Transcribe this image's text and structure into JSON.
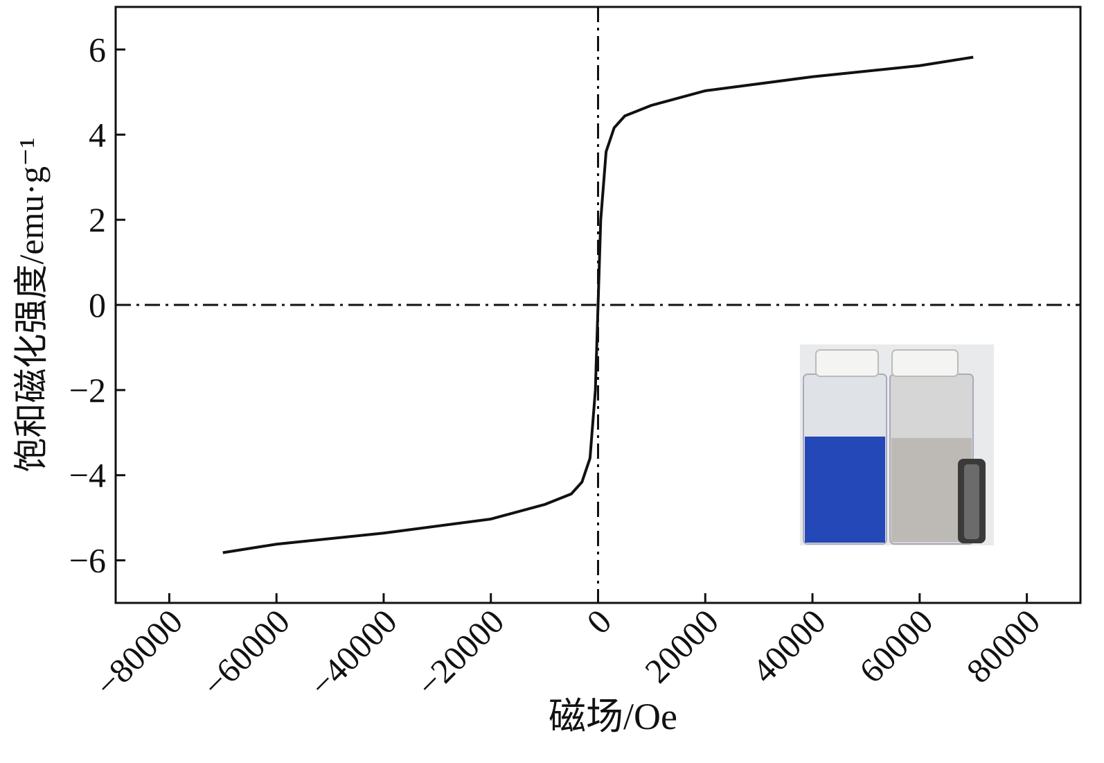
{
  "chart_data": {
    "type": "line",
    "xlabel": "磁场/Oe",
    "ylabel": "饱和磁化强度/emu·g⁻¹",
    "x": [
      -70000,
      -60000,
      -40000,
      -20000,
      -10000,
      -5000,
      -3000,
      -1500,
      -500,
      0,
      500,
      1500,
      3000,
      5000,
      10000,
      20000,
      40000,
      60000,
      70000
    ],
    "values": [
      -5.82,
      -5.62,
      -5.36,
      -5.03,
      -4.69,
      -4.44,
      -4.16,
      -3.6,
      -2.0,
      0,
      2.0,
      3.6,
      4.16,
      4.44,
      4.69,
      5.03,
      5.36,
      5.62,
      5.82
    ],
    "color": "#111111",
    "xlim": [
      -90000,
      90000
    ],
    "ylim": [
      -7,
      7
    ],
    "xticks": [
      {
        "value": -80000,
        "label": "−80000"
      },
      {
        "value": -60000,
        "label": "−60000"
      },
      {
        "value": -40000,
        "label": "−40000"
      },
      {
        "value": -20000,
        "label": "−20000"
      },
      0,
      20000,
      40000,
      60000,
      80000
    ],
    "yticks": [
      {
        "value": -6,
        "label": "−6"
      },
      {
        "value": -4,
        "label": "−4"
      },
      {
        "value": -2,
        "label": "−2"
      },
      0,
      2,
      4,
      6
    ]
  }
}
